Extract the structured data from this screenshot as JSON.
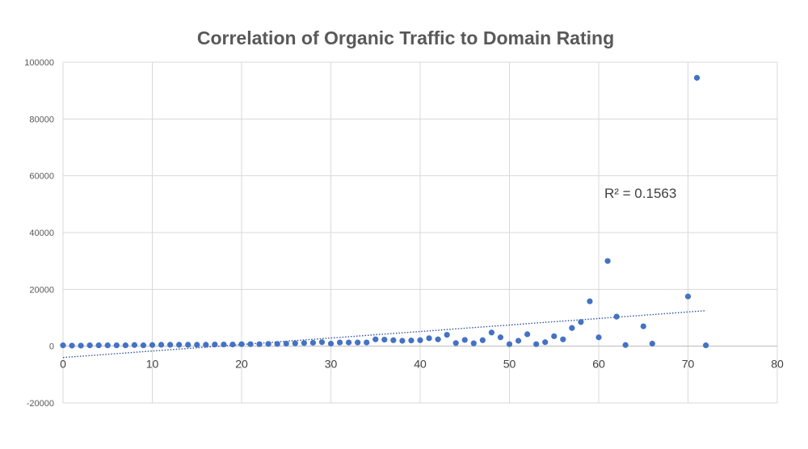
{
  "chart_data": {
    "type": "scatter",
    "title": "Correlation of Organic Traffic to Domain Rating",
    "xlabel": "",
    "ylabel": "",
    "xlim": [
      0,
      80
    ],
    "ylim": [
      -20000,
      100000
    ],
    "x_ticks": [
      0,
      10,
      20,
      30,
      40,
      50,
      60,
      70,
      80
    ],
    "y_ticks": [
      -20000,
      0,
      20000,
      40000,
      60000,
      80000,
      100000
    ],
    "grid": true,
    "legend": "none",
    "marker_color": "#4472c4",
    "trendline": {
      "type": "linear",
      "color": "#2f55a4",
      "style": "dotted",
      "x_range": [
        0,
        72
      ],
      "y_start": -4000,
      "y_end": 12500,
      "label": "R² = 0.1563"
    },
    "series": [
      {
        "points": [
          [
            0,
            300
          ],
          [
            1,
            200
          ],
          [
            2,
            200
          ],
          [
            3,
            300
          ],
          [
            4,
            300
          ],
          [
            5,
            300
          ],
          [
            6,
            300
          ],
          [
            7,
            300
          ],
          [
            8,
            400
          ],
          [
            9,
            300
          ],
          [
            10,
            400
          ],
          [
            11,
            500
          ],
          [
            12,
            500
          ],
          [
            13,
            500
          ],
          [
            14,
            500
          ],
          [
            15,
            500
          ],
          [
            16,
            500
          ],
          [
            17,
            600
          ],
          [
            18,
            600
          ],
          [
            19,
            600
          ],
          [
            20,
            700
          ],
          [
            21,
            700
          ],
          [
            22,
            700
          ],
          [
            23,
            800
          ],
          [
            24,
            800
          ],
          [
            25,
            900
          ],
          [
            26,
            1000
          ],
          [
            27,
            1100
          ],
          [
            28,
            1200
          ],
          [
            29,
            1400
          ],
          [
            30,
            900
          ],
          [
            31,
            1300
          ],
          [
            32,
            1300
          ],
          [
            33,
            1300
          ],
          [
            34,
            1300
          ],
          [
            35,
            2400
          ],
          [
            36,
            2300
          ],
          [
            37,
            2100
          ],
          [
            38,
            1900
          ],
          [
            39,
            2000
          ],
          [
            40,
            2100
          ],
          [
            41,
            2800
          ],
          [
            42,
            2400
          ],
          [
            43,
            4000
          ],
          [
            44,
            1100
          ],
          [
            45,
            2200
          ],
          [
            46,
            1000
          ],
          [
            47,
            2100
          ],
          [
            48,
            4800
          ],
          [
            49,
            3100
          ],
          [
            50,
            700
          ],
          [
            51,
            1900
          ],
          [
            52,
            4200
          ],
          [
            53,
            700
          ],
          [
            54,
            1400
          ],
          [
            55,
            3500
          ],
          [
            56,
            2400
          ],
          [
            57,
            6400
          ],
          [
            58,
            8500
          ],
          [
            59,
            15800
          ],
          [
            60,
            3100
          ],
          [
            61,
            30000
          ],
          [
            62,
            10400
          ],
          [
            63,
            400
          ],
          [
            65,
            7000
          ],
          [
            66,
            900
          ],
          [
            70,
            17500
          ],
          [
            71,
            94500
          ],
          [
            72,
            300
          ]
        ]
      }
    ]
  }
}
